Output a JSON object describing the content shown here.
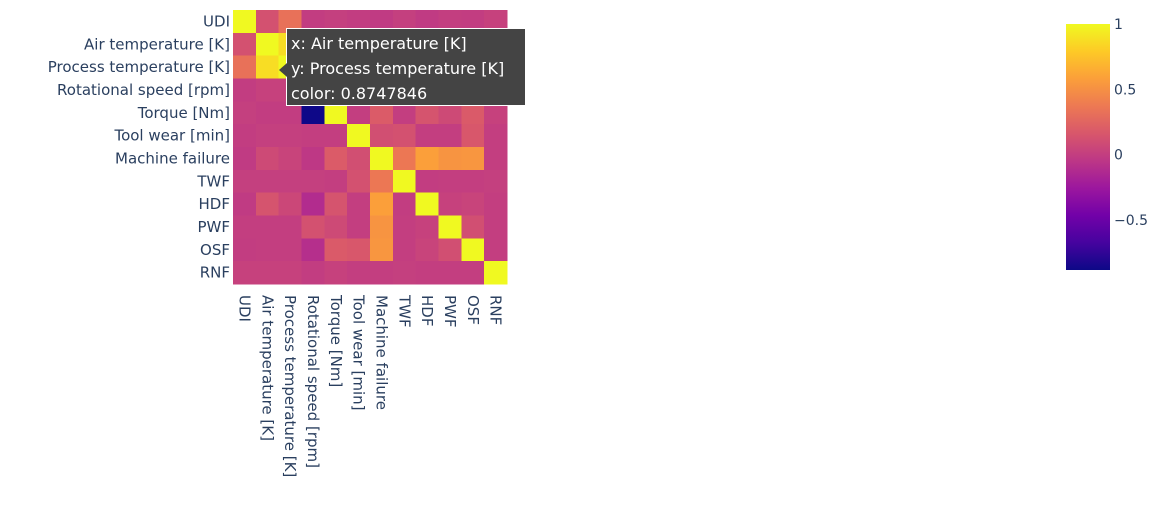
{
  "chart_data": {
    "type": "heatmap",
    "labels": [
      "UDI",
      "Air temperature [K]",
      "Process temperature [K]",
      "Rotational speed [rpm]",
      "Torque [Nm]",
      "Tool wear [min]",
      "Machine failure",
      "TWF",
      "HDF",
      "PWF",
      "OSF",
      "RNF"
    ],
    "z": [
      [
        1,
        0.12,
        0.32,
        -0.01,
        0.01,
        -0.01,
        -0.02,
        0.01,
        -0.02,
        0.0,
        -0.01,
        0.02
      ],
      [
        0.12,
        1,
        0.8747846,
        0.02,
        -0.01,
        0.01,
        0.08,
        0.01,
        0.14,
        0.0,
        0.0,
        0.02
      ],
      [
        0.32,
        0.8747846,
        1,
        0.02,
        -0.01,
        0.01,
        0.04,
        0.01,
        0.06,
        0.0,
        0.0,
        0.02
      ],
      [
        -0.01,
        0.02,
        0.02,
        1,
        -0.88,
        0.0,
        -0.04,
        0.01,
        -0.12,
        0.12,
        -0.1,
        -0.01
      ],
      [
        0.01,
        -0.01,
        -0.01,
        -0.88,
        1,
        0.0,
        0.19,
        0.0,
        0.14,
        0.08,
        0.18,
        0.02
      ],
      [
        -0.01,
        0.01,
        0.01,
        0.0,
        0.0,
        1,
        0.11,
        0.12,
        0.0,
        0.0,
        0.16,
        0.0
      ],
      [
        -0.02,
        0.08,
        0.04,
        -0.04,
        0.19,
        0.11,
        1,
        0.36,
        0.58,
        0.52,
        0.53,
        0.0
      ],
      [
        0.01,
        0.01,
        0.01,
        0.01,
        0.0,
        0.12,
        0.36,
        1,
        -0.01,
        0.0,
        0.0,
        0.01
      ],
      [
        -0.02,
        0.14,
        0.06,
        -0.12,
        0.14,
        0.0,
        0.58,
        -0.01,
        1,
        0.02,
        0.04,
        0.0
      ],
      [
        0.0,
        0.0,
        0.0,
        0.12,
        0.08,
        0.0,
        0.52,
        0.0,
        0.02,
        1,
        0.11,
        -0.0
      ],
      [
        -0.01,
        0.0,
        0.0,
        -0.1,
        0.18,
        0.16,
        0.53,
        0.0,
        0.04,
        0.11,
        1,
        0.0
      ],
      [
        0.02,
        0.02,
        0.02,
        -0.01,
        0.02,
        0.0,
        0.0,
        0.01,
        0.0,
        -0.0,
        0.0,
        1
      ]
    ],
    "zmin": -0.8847,
    "zmax": 1,
    "colorscale": [
      "#0d0887",
      "#46039f",
      "#7201a8",
      "#9c179e",
      "#bd3786",
      "#d8576b",
      "#ed7953",
      "#fb9f3a",
      "#fdca26",
      "#f0f921"
    ],
    "colorbar_ticks": [
      1,
      0.5,
      0,
      -0.5
    ],
    "colorbar_tick_labels": [
      "1",
      "0.5",
      "0",
      "−0.5"
    ]
  },
  "tooltip": {
    "x_line": "x: Air temperature [K]",
    "y_line": "y: Process temperature [K]",
    "color_line": "color: 0.8747846"
  }
}
